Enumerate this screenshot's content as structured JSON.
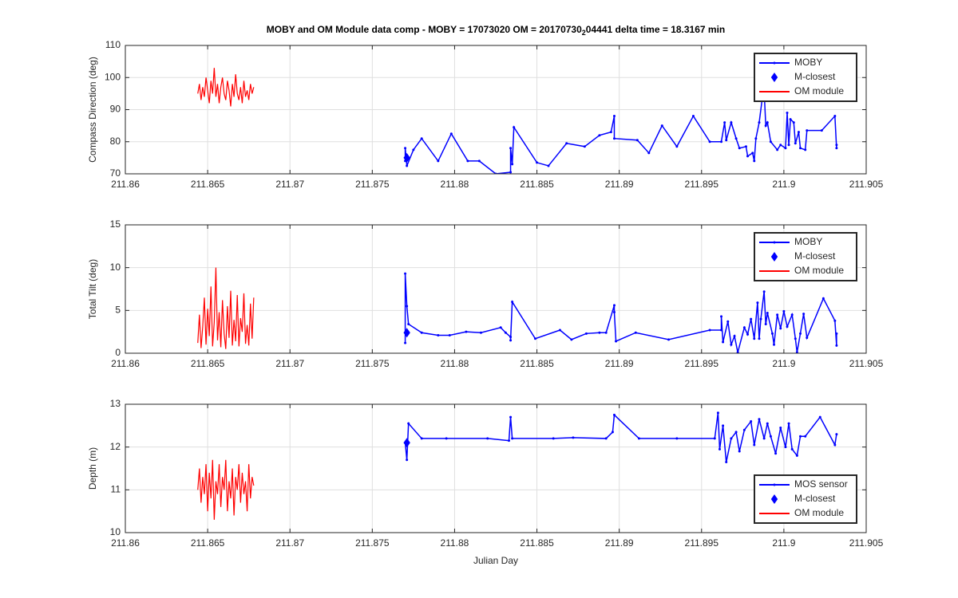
{
  "chart_data": [
    {
      "type": "line",
      "title": [
        "MOBY and OM Module data comp - MOBY = 17073020 OM = 20170730",
        "2",
        "04441 delta time = 18.3167 min"
      ],
      "ylabel": "Compass Direction (deg)",
      "xlim": [
        211.86,
        211.905
      ],
      "xticks": [
        211.86,
        211.865,
        211.87,
        211.875,
        211.88,
        211.885,
        211.89,
        211.895,
        211.9,
        211.905
      ],
      "ylim": [
        70,
        110
      ],
      "yticks": [
        70,
        80,
        90,
        100,
        110
      ],
      "grid": true,
      "legend": "northeast",
      "series": [
        {
          "name": "MOBY",
          "color": "#0000ff",
          "style": "line-dot",
          "x": [
            211.877,
            211.877,
            211.8771,
            211.8775,
            211.878,
            211.879,
            211.8798,
            211.8808,
            211.8815,
            211.8825,
            211.8834,
            211.8834,
            211.8835,
            211.8836,
            211.885,
            211.8857,
            211.8868,
            211.8879,
            211.8888,
            211.8895,
            211.8897,
            211.8897,
            211.8911,
            211.8918,
            211.8926,
            211.8935,
            211.8945,
            211.8955,
            211.8962,
            211.8964,
            211.8965,
            211.8968,
            211.8971,
            211.8973,
            211.8977,
            211.8978,
            211.8981,
            211.8982,
            211.8983,
            211.8985,
            211.8987,
            211.8988,
            211.8989,
            211.899,
            211.8992,
            211.8996,
            211.8998,
            211.9001,
            211.9002,
            211.9003,
            211.9004,
            211.9006,
            211.9007,
            211.9009,
            211.901,
            211.9013,
            211.9014,
            211.9023,
            211.9031,
            211.9032,
            211.9032
          ],
          "values": [
            74,
            78,
            72.5,
            77.5,
            81,
            74,
            82.5,
            74,
            74,
            70,
            70.5,
            78,
            73,
            84.5,
            73.5,
            72.5,
            79.5,
            78.5,
            82,
            83,
            88,
            81,
            80.5,
            76.5,
            85,
            78.5,
            88,
            80,
            80,
            86,
            80.5,
            86,
            81,
            78,
            78.5,
            75.5,
            76.5,
            74,
            81,
            86,
            94,
            96,
            85,
            86,
            80,
            77.5,
            79,
            78,
            89,
            79,
            87,
            86,
            79.5,
            83,
            78,
            77.5,
            83.5,
            83.5,
            88,
            78,
            79
          ]
        },
        {
          "name": "M-closest",
          "color": "#0000ff",
          "style": "diamond",
          "x": [
            211.8771
          ],
          "values": [
            75
          ]
        },
        {
          "name": "OM module",
          "color": "#ff0000",
          "style": "line",
          "x": [
            211.8644,
            211.8645,
            211.8646,
            211.8647,
            211.8648,
            211.8649,
            211.865,
            211.8651,
            211.8652,
            211.8653,
            211.8654,
            211.8655,
            211.8656,
            211.8657,
            211.8658,
            211.8659,
            211.866,
            211.8661,
            211.8662,
            211.8663,
            211.8664,
            211.8665,
            211.8666,
            211.8667,
            211.8668,
            211.8669,
            211.867,
            211.8671,
            211.8672,
            211.8673,
            211.8674,
            211.8675,
            211.8676,
            211.8677,
            211.8678
          ],
          "values": [
            95,
            98,
            93,
            97,
            94,
            100,
            96,
            92,
            99,
            95,
            103,
            94,
            98,
            92,
            97,
            100,
            95,
            93,
            99,
            96,
            91,
            98,
            94,
            101,
            95,
            93,
            97,
            92,
            99,
            94,
            96,
            93,
            98,
            95,
            97
          ]
        }
      ]
    },
    {
      "type": "line",
      "ylabel": "Total Tilt (deg)",
      "xlim": [
        211.86,
        211.905
      ],
      "xticks": [
        211.86,
        211.865,
        211.87,
        211.875,
        211.88,
        211.885,
        211.89,
        211.895,
        211.9,
        211.905
      ],
      "ylim": [
        0,
        15
      ],
      "yticks": [
        0,
        5,
        10,
        15
      ],
      "grid": true,
      "legend": "northeast",
      "series": [
        {
          "name": "MOBY",
          "color": "#0000ff",
          "style": "line-dot",
          "x": [
            211.877,
            211.877,
            211.877,
            211.8771,
            211.8772,
            211.878,
            211.879,
            211.8797,
            211.8807,
            211.8816,
            211.8828,
            211.8831,
            211.8834,
            211.8834,
            211.8835,
            211.8849,
            211.8864,
            211.8871,
            211.888,
            211.8888,
            211.8892,
            211.8897,
            211.8897,
            211.8898,
            211.891,
            211.893,
            211.8955,
            211.8962,
            211.8962,
            211.8963,
            211.8966,
            211.8968,
            211.897,
            211.8972,
            211.8976,
            211.8978,
            211.898,
            211.8982,
            211.8984,
            211.8985,
            211.8986,
            211.8988,
            211.8989,
            211.899,
            211.8993,
            211.8994,
            211.8996,
            211.8998,
            211.9,
            211.9002,
            211.9005,
            211.9007,
            211.9008,
            211.901,
            211.9012,
            211.9014,
            211.9024,
            211.9031,
            211.9032,
            211.9032
          ],
          "values": [
            2.4,
            1.2,
            9.3,
            5.5,
            3.4,
            2.4,
            2.1,
            2.1,
            2.5,
            2.4,
            3.0,
            2.4,
            1.9,
            1.5,
            6.0,
            1.7,
            2.7,
            1.6,
            2.3,
            2.4,
            2.4,
            5.6,
            4.8,
            1.4,
            2.4,
            1.6,
            2.7,
            2.7,
            4.3,
            1.3,
            3.7,
            1.0,
            2.0,
            0.1,
            3.0,
            2.2,
            4.0,
            1.7,
            5.9,
            1.7,
            4.0,
            7.2,
            3.4,
            4.7,
            2.3,
            1.0,
            4.5,
            2.9,
            4.9,
            3.1,
            4.5,
            1.7,
            0.1,
            2.3,
            4.6,
            1.8,
            6.4,
            3.8,
            0.9,
            2.3
          ]
        },
        {
          "name": "M-closest",
          "color": "#0000ff",
          "style": "diamond",
          "x": [
            211.8771
          ],
          "values": [
            2.4
          ]
        },
        {
          "name": "OM module",
          "color": "#ff0000",
          "style": "line",
          "x": [
            211.8644,
            211.8645,
            211.8646,
            211.8647,
            211.8648,
            211.8649,
            211.865,
            211.8651,
            211.8652,
            211.8653,
            211.8654,
            211.8655,
            211.8656,
            211.8657,
            211.8658,
            211.8659,
            211.866,
            211.8661,
            211.8662,
            211.8663,
            211.8664,
            211.8665,
            211.8666,
            211.8667,
            211.8668,
            211.8669,
            211.867,
            211.8671,
            211.8672,
            211.8673,
            211.8674,
            211.8675,
            211.8676,
            211.8677,
            211.8678
          ],
          "values": [
            1.2,
            4.5,
            0.6,
            3.1,
            6.5,
            1.0,
            5.2,
            2.0,
            7.8,
            0.8,
            3.6,
            10.0,
            1.5,
            4.8,
            0.7,
            6.2,
            2.3,
            0.5,
            5.5,
            1.8,
            7.3,
            0.9,
            3.9,
            1.4,
            6.8,
            0.8,
            4.1,
            2.5,
            7.0,
            1.1,
            3.3,
            0.9,
            5.8,
            1.7,
            6.5
          ]
        }
      ]
    },
    {
      "type": "line",
      "ylabel": "Depth (m)",
      "xlabel": "Julian Day",
      "xlim": [
        211.86,
        211.905
      ],
      "xticks": [
        211.86,
        211.865,
        211.87,
        211.875,
        211.88,
        211.885,
        211.89,
        211.895,
        211.9,
        211.905
      ],
      "ylim": [
        10,
        13
      ],
      "yticks": [
        10,
        11,
        12,
        13
      ],
      "grid": true,
      "legend": "southeast",
      "series": [
        {
          "name": "MOS sensor",
          "color": "#0000ff",
          "style": "line-dot",
          "x": [
            211.877,
            211.8771,
            211.8772,
            211.878,
            211.8795,
            211.882,
            211.8833,
            211.8834,
            211.8835,
            211.886,
            211.8872,
            211.8892,
            211.8896,
            211.8897,
            211.8912,
            211.8935,
            211.8958,
            211.896,
            211.8961,
            211.8963,
            211.8965,
            211.8968,
            211.8971,
            211.8973,
            211.8976,
            211.898,
            211.8982,
            211.8985,
            211.8988,
            211.899,
            211.8992,
            211.8995,
            211.8998,
            211.9001,
            211.9003,
            211.9005,
            211.9008,
            211.901,
            211.9013,
            211.9022,
            211.9031,
            211.9032
          ],
          "values": [
            12.1,
            11.7,
            12.55,
            12.2,
            12.2,
            12.2,
            12.15,
            12.7,
            12.2,
            12.2,
            12.22,
            12.2,
            12.35,
            12.75,
            12.2,
            12.2,
            12.2,
            12.8,
            11.95,
            12.5,
            11.65,
            12.2,
            12.35,
            11.9,
            12.4,
            12.6,
            12.05,
            12.65,
            12.2,
            12.55,
            12.25,
            11.85,
            12.45,
            12.0,
            12.55,
            11.95,
            11.8,
            12.25,
            12.25,
            12.7,
            12.05,
            12.3
          ]
        },
        {
          "name": "M-closest",
          "color": "#0000ff",
          "style": "diamond",
          "x": [
            211.8771
          ],
          "values": [
            12.1
          ]
        },
        {
          "name": "OM module",
          "color": "#ff0000",
          "style": "line",
          "x": [
            211.8644,
            211.8645,
            211.8646,
            211.8647,
            211.8648,
            211.8649,
            211.865,
            211.8651,
            211.8652,
            211.8653,
            211.8654,
            211.8655,
            211.8656,
            211.8657,
            211.8658,
            211.8659,
            211.866,
            211.8661,
            211.8662,
            211.8663,
            211.8664,
            211.8665,
            211.8666,
            211.8667,
            211.8668,
            211.8669,
            211.867,
            211.8671,
            211.8672,
            211.8673,
            211.8674,
            211.8675,
            211.8676,
            211.8677,
            211.8678
          ],
          "values": [
            11.0,
            11.5,
            10.7,
            11.3,
            10.9,
            11.6,
            10.5,
            11.4,
            10.8,
            11.7,
            10.3,
            11.2,
            10.9,
            11.6,
            10.6,
            11.3,
            11.0,
            11.7,
            10.5,
            11.2,
            10.8,
            11.5,
            10.4,
            11.3,
            11.0,
            11.6,
            10.7,
            11.4,
            10.9,
            11.2,
            10.5,
            11.6,
            10.8,
            11.3,
            11.1
          ]
        }
      ]
    }
  ]
}
